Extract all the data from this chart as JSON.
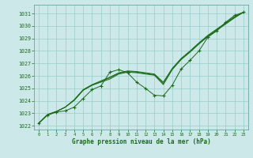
{
  "xlabel": "Graphe pression niveau de la mer (hPa)",
  "background_color": "#cce8e8",
  "grid_color": "#99cccc",
  "line_color": "#1a6b1a",
  "text_color": "#1a6b1a",
  "ylim": [
    1021.7,
    1031.7
  ],
  "xlim": [
    -0.5,
    23.5
  ],
  "yticks": [
    1022,
    1023,
    1024,
    1025,
    1026,
    1027,
    1028,
    1029,
    1030,
    1031
  ],
  "xticks": [
    0,
    1,
    2,
    3,
    4,
    5,
    6,
    7,
    8,
    9,
    10,
    11,
    12,
    13,
    14,
    15,
    16,
    17,
    18,
    19,
    20,
    21,
    22,
    23
  ],
  "series_smooth1": [
    1022.2,
    1022.9,
    1023.15,
    1023.5,
    1024.05,
    1024.85,
    1025.25,
    1025.5,
    1025.75,
    1026.15,
    1026.3,
    1026.25,
    1026.15,
    1026.05,
    1025.3,
    1026.5,
    1027.3,
    1027.9,
    1028.55,
    1029.15,
    1029.65,
    1030.15,
    1030.65,
    1031.1
  ],
  "series_smooth2": [
    1022.2,
    1022.9,
    1023.15,
    1023.5,
    1024.05,
    1024.85,
    1025.25,
    1025.55,
    1025.85,
    1026.2,
    1026.35,
    1026.3,
    1026.2,
    1026.1,
    1025.4,
    1026.55,
    1027.35,
    1027.95,
    1028.6,
    1029.2,
    1029.7,
    1030.2,
    1030.7,
    1031.1
  ],
  "series_smooth3": [
    1022.2,
    1022.9,
    1023.15,
    1023.5,
    1024.1,
    1024.9,
    1025.3,
    1025.6,
    1025.9,
    1026.25,
    1026.4,
    1026.35,
    1026.25,
    1026.15,
    1025.5,
    1026.6,
    1027.4,
    1028.0,
    1028.65,
    1029.25,
    1029.75,
    1030.25,
    1030.75,
    1031.1
  ],
  "series_zigzag": [
    1022.2,
    1022.85,
    1023.1,
    1023.2,
    1023.5,
    1024.2,
    1024.9,
    1025.2,
    1026.3,
    1026.5,
    1026.25,
    1025.5,
    1025.0,
    1024.45,
    1024.4,
    1025.25,
    1026.55,
    1027.25,
    1028.0,
    1029.1,
    1029.6,
    1030.3,
    1030.85,
    1031.1
  ]
}
